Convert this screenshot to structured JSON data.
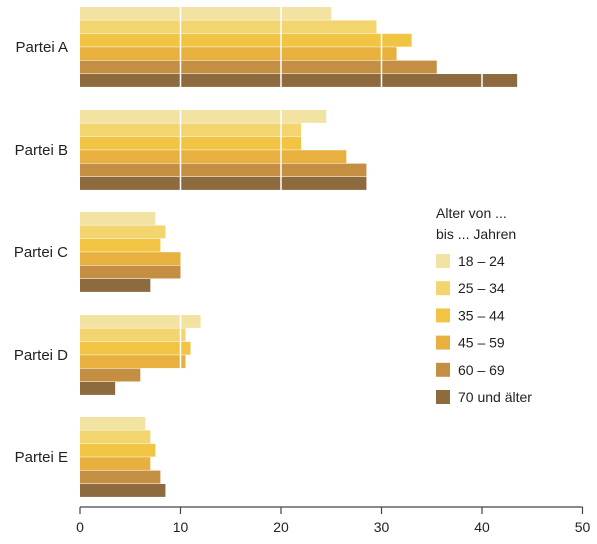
{
  "chart_data": {
    "type": "bar",
    "orientation": "horizontal",
    "categories": [
      "Partei A",
      "Partei B",
      "Partei C",
      "Partei D",
      "Partei E"
    ],
    "series": [
      {
        "name": "18 – 24",
        "color": "#f3e3a2",
        "values": [
          25,
          24.5,
          7.5,
          12,
          6.5
        ]
      },
      {
        "name": "25 – 34",
        "color": "#f2d56f",
        "values": [
          29.5,
          22,
          8.5,
          10.5,
          7
        ]
      },
      {
        "name": "35 – 44",
        "color": "#f1c543",
        "values": [
          33,
          22,
          8,
          11,
          7.5
        ]
      },
      {
        "name": "45 – 59",
        "color": "#e8b03f",
        "values": [
          31.5,
          26.5,
          10,
          10.5,
          7
        ]
      },
      {
        "name": "60 – 69",
        "color": "#c48f43",
        "values": [
          35.5,
          28.5,
          10,
          6,
          8
        ]
      },
      {
        "name": "70 und älter",
        "color": "#8e6b3e",
        "values": [
          43.5,
          28.5,
          7,
          3.5,
          8.5
        ]
      }
    ],
    "legend_title": [
      "Alter von ...",
      "bis ... Jahren"
    ],
    "xlim": [
      0,
      50
    ],
    "xticks": [
      0,
      10,
      20,
      30,
      40,
      50
    ],
    "gridlines": "white vertical lines at 10, 20, 30, 40",
    "legend_position": "right"
  }
}
